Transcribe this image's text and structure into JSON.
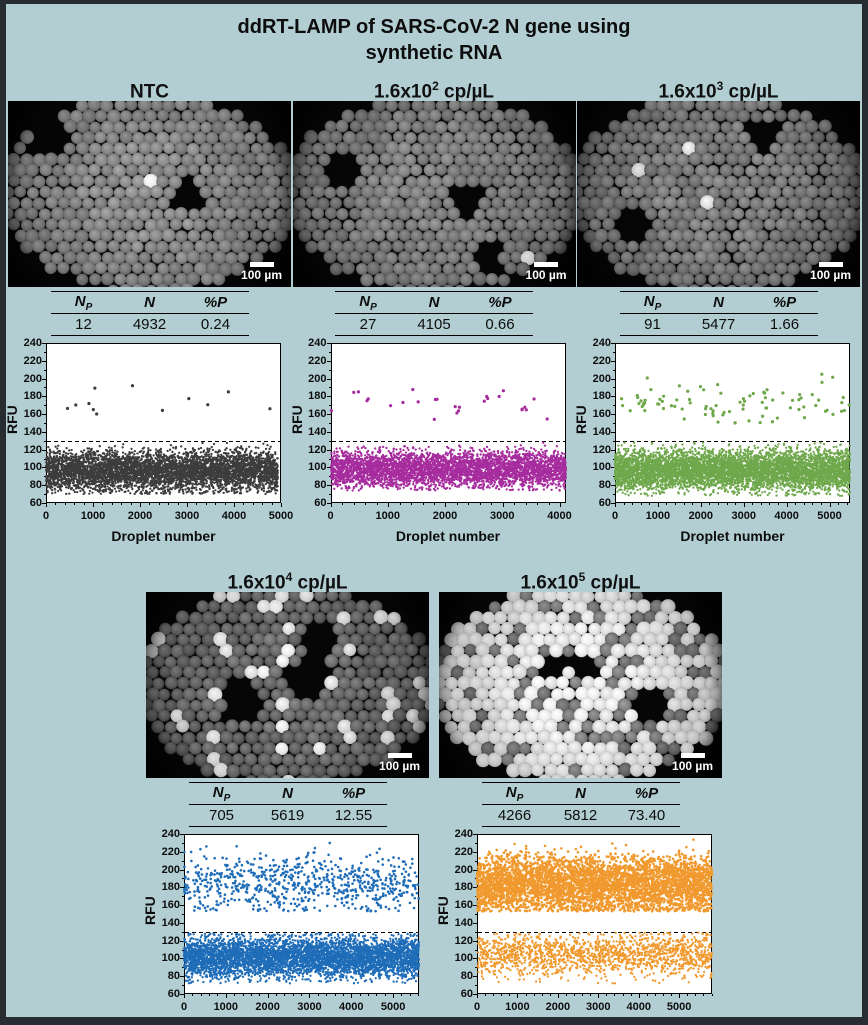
{
  "title": {
    "line1": "ddRT-LAMP of SARS-CoV-2 N gene using",
    "line2": "synthetic RNA"
  },
  "colors": {
    "background": "#b2ced3",
    "frame": "#272c30",
    "threshold_line": "#000000"
  },
  "table_headers": {
    "np_main": "N",
    "np_sub": "P",
    "n": "N",
    "percent_p": "%P"
  },
  "axis": {
    "x_label": "Droplet number",
    "y_label": "RFU"
  },
  "panels": [
    {
      "label_base": "NTC",
      "label_exp": "",
      "label_unit": "",
      "scale_bar": "100 µm",
      "stats": {
        "np": "12",
        "n": "4932",
        "pp": "0.24"
      }
    },
    {
      "label_base": "1.6x10",
      "label_exp": "2",
      "label_unit": " cp/µL",
      "scale_bar": "100 µm",
      "stats": {
        "np": "27",
        "n": "4105",
        "pp": "0.66"
      }
    },
    {
      "label_base": "1.6x10",
      "label_exp": "3",
      "label_unit": " cp/µL",
      "scale_bar": "100 µm",
      "stats": {
        "np": "91",
        "n": "5477",
        "pp": "1.66"
      }
    },
    {
      "label_base": "1.6x10",
      "label_exp": "4",
      "label_unit": " cp/µL",
      "scale_bar": "100 µm",
      "stats": {
        "np": "705",
        "n": "5619",
        "pp": "12.55"
      }
    },
    {
      "label_base": "1.6x10",
      "label_exp": "5",
      "label_unit": " cp/µL",
      "scale_bar": "100 µm",
      "stats": {
        "np": "4266",
        "n": "5812",
        "pp": "73.40"
      }
    }
  ],
  "chart_data": [
    {
      "type": "scatter",
      "panel": "NTC",
      "xlabel": "Droplet number",
      "ylabel": "RFU",
      "xlim": [
        0,
        5000
      ],
      "ylim": [
        60,
        240
      ],
      "x_ticks": [
        0,
        1000,
        2000,
        3000,
        4000,
        5000
      ],
      "y_ticks": [
        60,
        80,
        100,
        120,
        140,
        160,
        180,
        200,
        220,
        240
      ],
      "threshold": 130,
      "n_droplets": 4932,
      "n_positive": 12,
      "percent_positive": 0.24,
      "negative_band": {
        "min": 70,
        "max": 128,
        "mean": 96,
        "sd": 11
      },
      "positive_band": {
        "min": 158,
        "max": 192,
        "mean": 174,
        "sd": 10
      },
      "color": "#3d3d3d"
    },
    {
      "type": "scatter",
      "panel": "1.6x10^2 cp/uL",
      "xlabel": "Droplet number",
      "ylabel": "RFU",
      "xlim": [
        0,
        4105
      ],
      "ylim": [
        60,
        240
      ],
      "x_ticks": [
        0,
        1000,
        2000,
        3000,
        4000
      ],
      "y_ticks": [
        60,
        80,
        100,
        120,
        140,
        160,
        180,
        200,
        220,
        240
      ],
      "threshold": 130,
      "n_droplets": 4105,
      "n_positive": 27,
      "percent_positive": 0.66,
      "negative_band": {
        "min": 74,
        "max": 128,
        "mean": 98,
        "sd": 10
      },
      "positive_band": {
        "min": 150,
        "max": 197,
        "mean": 170,
        "sd": 13
      },
      "color": "#a62c9e"
    },
    {
      "type": "scatter",
      "panel": "1.6x10^3 cp/uL",
      "xlabel": "Droplet number",
      "ylabel": "RFU",
      "xlim": [
        0,
        5477
      ],
      "ylim": [
        60,
        240
      ],
      "x_ticks": [
        0,
        1000,
        2000,
        3000,
        4000,
        5000
      ],
      "y_ticks": [
        60,
        80,
        100,
        120,
        140,
        160,
        180,
        200,
        220,
        240
      ],
      "threshold": 130,
      "n_droplets": 5477,
      "n_positive": 91,
      "percent_positive": 1.66,
      "negative_band": {
        "min": 68,
        "max": 128,
        "mean": 97,
        "sd": 11
      },
      "positive_band": {
        "min": 150,
        "max": 215,
        "mean": 172,
        "sd": 14
      },
      "color": "#6fa84c"
    },
    {
      "type": "scatter",
      "panel": "1.6x10^4 cp/uL",
      "xlabel": "Droplet number",
      "ylabel": "RFU",
      "xlim": [
        0,
        5619
      ],
      "ylim": [
        60,
        240
      ],
      "x_ticks": [
        0,
        1000,
        2000,
        3000,
        4000,
        5000
      ],
      "y_ticks": [
        60,
        80,
        100,
        120,
        140,
        160,
        180,
        200,
        220,
        240
      ],
      "threshold": 130,
      "n_droplets": 5619,
      "n_positive": 705,
      "percent_positive": 12.55,
      "negative_band": {
        "min": 72,
        "max": 128,
        "mean": 101,
        "sd": 11
      },
      "positive_band": {
        "min": 153,
        "max": 233,
        "mean": 184,
        "sd": 16
      },
      "color": "#1f6db8"
    },
    {
      "type": "scatter",
      "panel": "1.6x10^5 cp/uL",
      "xlabel": "Droplet number",
      "ylabel": "RFU",
      "xlim": [
        0,
        5812
      ],
      "ylim": [
        60,
        240
      ],
      "x_ticks": [
        0,
        1000,
        2000,
        3000,
        4000,
        5000
      ],
      "y_ticks": [
        60,
        80,
        100,
        120,
        140,
        160,
        180,
        200,
        220,
        240
      ],
      "threshold": 130,
      "n_droplets": 5812,
      "n_positive": 4266,
      "percent_positive": 73.4,
      "negative_band": {
        "min": 72,
        "max": 129,
        "mean": 104,
        "sd": 12
      },
      "positive_band": {
        "min": 153,
        "max": 238,
        "mean": 183,
        "sd": 16
      },
      "color": "#f0992e"
    }
  ]
}
